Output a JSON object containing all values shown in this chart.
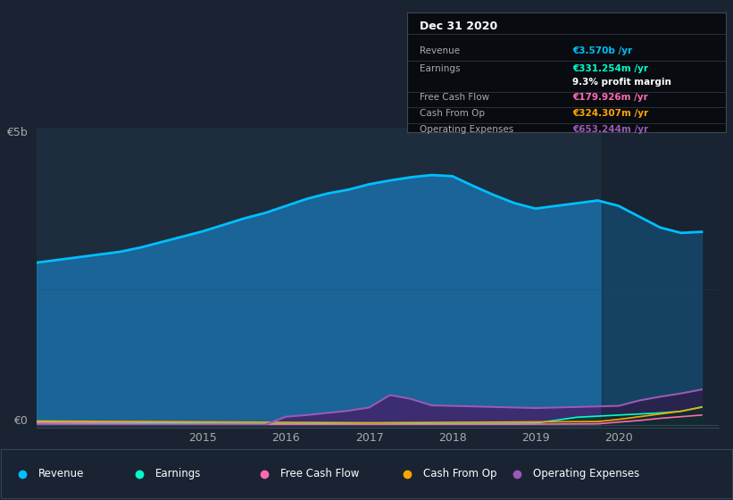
{
  "background_color": "#1a2332",
  "plot_bg_color": "#1e2d3d",
  "y_label_5b": "€5b",
  "y_label_0": "€0",
  "tooltip": {
    "title": "Dec 31 2020",
    "rows": [
      {
        "label": "Revenue",
        "value": "€3.570b /yr",
        "color": "#00bfff"
      },
      {
        "label": "Earnings",
        "value": "€331.254m /yr",
        "color": "#00ffcc"
      },
      {
        "label": "",
        "value": "9.3% profit margin",
        "color": "#ffffff"
      },
      {
        "label": "Free Cash Flow",
        "value": "€179.926m /yr",
        "color": "#ff69b4"
      },
      {
        "label": "Cash From Op",
        "value": "€324.307m /yr",
        "color": "#ffa500"
      },
      {
        "label": "Operating Expenses",
        "value": "€653.244m /yr",
        "color": "#9b59b6"
      }
    ]
  },
  "legend": [
    {
      "label": "Revenue",
      "color": "#00bfff"
    },
    {
      "label": "Earnings",
      "color": "#00ffcc"
    },
    {
      "label": "Free Cash Flow",
      "color": "#ff69b4"
    },
    {
      "label": "Cash From Op",
      "color": "#ffa500"
    },
    {
      "label": "Operating Expenses",
      "color": "#9b59b6"
    }
  ],
  "series": {
    "x": [
      2013.0,
      2013.25,
      2013.5,
      2013.75,
      2014.0,
      2014.25,
      2014.5,
      2014.75,
      2015.0,
      2015.25,
      2015.5,
      2015.75,
      2016.0,
      2016.25,
      2016.5,
      2016.75,
      2017.0,
      2017.25,
      2017.5,
      2017.75,
      2018.0,
      2018.25,
      2018.5,
      2018.75,
      2019.0,
      2019.25,
      2019.5,
      2019.75,
      2020.0,
      2020.25,
      2020.5,
      2020.75,
      2021.0
    ],
    "revenue": [
      3000000000.0,
      3050000000.0,
      3100000000.0,
      3150000000.0,
      3200000000.0,
      3280000000.0,
      3380000000.0,
      3480000000.0,
      3580000000.0,
      3700000000.0,
      3820000000.0,
      3920000000.0,
      4050000000.0,
      4180000000.0,
      4280000000.0,
      4350000000.0,
      4450000000.0,
      4520000000.0,
      4580000000.0,
      4620000000.0,
      4600000000.0,
      4420000000.0,
      4250000000.0,
      4100000000.0,
      4000000000.0,
      4050000000.0,
      4100000000.0,
      4150000000.0,
      4050000000.0,
      3850000000.0,
      3650000000.0,
      3550000000.0,
      3570000000.0
    ],
    "earnings": [
      50000000.0,
      48000000.0,
      45000000.0,
      42000000.0,
      40000000.0,
      38000000.0,
      35000000.0,
      33000000.0,
      30000000.0,
      28000000.0,
      25000000.0,
      22000000.0,
      20000000.0,
      18000000.0,
      15000000.0,
      13000000.0,
      10000000.0,
      12000000.0,
      15000000.0,
      18000000.0,
      20000000.0,
      22000000.0,
      25000000.0,
      28000000.0,
      30000000.0,
      85000000.0,
      140000000.0,
      160000000.0,
      180000000.0,
      200000000.0,
      220000000.0,
      250000000.0,
      331000000.0
    ],
    "free_cash_flow": [
      30000000.0,
      28000000.0,
      26000000.0,
      24000000.0,
      22000000.0,
      20000000.0,
      18000000.0,
      16000000.0,
      14000000.0,
      12000000.0,
      10000000.0,
      8000000.0,
      6000000.0,
      5000000.0,
      4000000.0,
      3000000.0,
      2000000.0,
      2000000.0,
      3000000.0,
      4000000.0,
      5000000.0,
      6000000.0,
      8000000.0,
      10000000.0,
      12000000.0,
      14000000.0,
      16000000.0,
      18000000.0,
      50000000.0,
      80000000.0,
      120000000.0,
      150000000.0,
      180000000.0
    ],
    "cash_from_op": [
      70000000.0,
      68000000.0,
      66000000.0,
      64000000.0,
      62000000.0,
      60000000.0,
      58000000.0,
      56000000.0,
      54000000.0,
      52000000.0,
      50000000.0,
      48000000.0,
      46000000.0,
      44000000.0,
      42000000.0,
      40000000.0,
      38000000.0,
      40000000.0,
      42000000.0,
      44000000.0,
      46000000.0,
      48000000.0,
      50000000.0,
      52000000.0,
      54000000.0,
      56000000.0,
      58000000.0,
      60000000.0,
      100000000.0,
      150000000.0,
      200000000.0,
      250000000.0,
      324000000.0
    ],
    "operating_expenses": [
      0.0,
      0.0,
      0.0,
      0.0,
      0.0,
      0.0,
      0.0,
      0.0,
      0.0,
      0.0,
      0.0,
      0.0,
      150000000.0,
      180000000.0,
      220000000.0,
      260000000.0,
      320000000.0,
      550000000.0,
      480000000.0,
      360000000.0,
      350000000.0,
      340000000.0,
      330000000.0,
      320000000.0,
      310000000.0,
      320000000.0,
      330000000.0,
      340000000.0,
      350000000.0,
      450000000.0,
      520000000.0,
      580000000.0,
      653000000.0
    ]
  }
}
